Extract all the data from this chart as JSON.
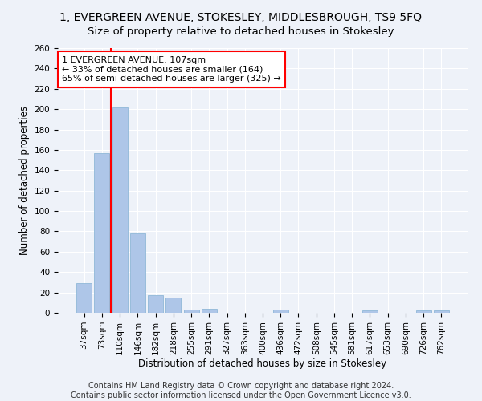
{
  "title": "1, EVERGREEN AVENUE, STOKESLEY, MIDDLESBROUGH, TS9 5FQ",
  "subtitle": "Size of property relative to detached houses in Stokesley",
  "xlabel": "Distribution of detached houses by size in Stokesley",
  "ylabel": "Number of detached properties",
  "bar_labels": [
    "37sqm",
    "73sqm",
    "110sqm",
    "146sqm",
    "182sqm",
    "218sqm",
    "255sqm",
    "291sqm",
    "327sqm",
    "363sqm",
    "400sqm",
    "436sqm",
    "472sqm",
    "508sqm",
    "545sqm",
    "581sqm",
    "617sqm",
    "653sqm",
    "690sqm",
    "726sqm",
    "762sqm"
  ],
  "bar_values": [
    29,
    157,
    202,
    78,
    17,
    15,
    3,
    4,
    0,
    0,
    0,
    3,
    0,
    0,
    0,
    0,
    2,
    0,
    0,
    2,
    2
  ],
  "bar_color": "#aec6e8",
  "bar_edge_color": "#8fb8d8",
  "vline_color": "red",
  "vline_x_index": 2,
  "ylim": [
    0,
    260
  ],
  "yticks": [
    0,
    20,
    40,
    60,
    80,
    100,
    120,
    140,
    160,
    180,
    200,
    220,
    240,
    260
  ],
  "annotation_line1": "1 EVERGREEN AVENUE: 107sqm",
  "annotation_line2": "← 33% of detached houses are smaller (164)",
  "annotation_line3": "65% of semi-detached houses are larger (325) →",
  "annotation_box_color": "white",
  "annotation_box_edge": "red",
  "footer1": "Contains HM Land Registry data © Crown copyright and database right 2024.",
  "footer2": "Contains public sector information licensed under the Open Government Licence v3.0.",
  "background_color": "#eef2f9",
  "grid_color": "white",
  "title_fontsize": 10,
  "subtitle_fontsize": 9.5,
  "axis_label_fontsize": 8.5,
  "tick_fontsize": 7.5,
  "annotation_fontsize": 8,
  "footer_fontsize": 7
}
